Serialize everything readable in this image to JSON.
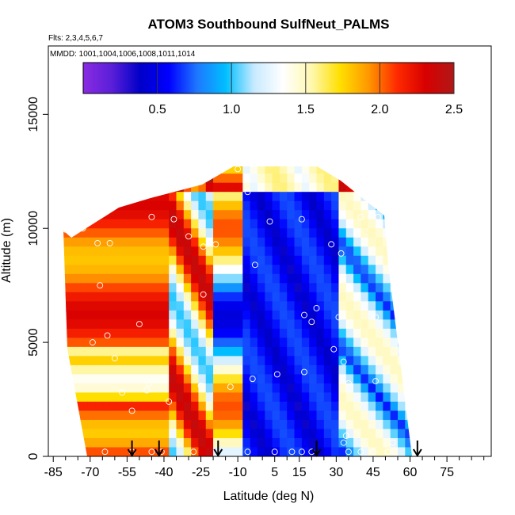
{
  "chart_data": {
    "type": "heatmap",
    "title": "ATOM3 Southbound SulfNeut_PALMS",
    "subtitle_flights": "Flts: 2,3,4,5,6,7",
    "subtitle_dates": "MMDD: 1001,1004,1006,1008,1011,1014",
    "xlabel": "Latitude (deg N)",
    "ylabel": "Altitude (m)",
    "xlim": [
      -87,
      93
    ],
    "ylim": [
      0,
      18000
    ],
    "x_ticks": [
      -85,
      -70,
      -55,
      -40,
      -25,
      -10,
      5,
      15,
      30,
      45,
      60,
      75
    ],
    "x_tick_labels": [
      "-85",
      "-70",
      "-55",
      "-40",
      "-25",
      "-10",
      "5",
      "15",
      "30",
      "45",
      "60",
      "75"
    ],
    "y_ticks": [
      0,
      5000,
      10000,
      15000
    ],
    "y_tick_labels": [
      "0",
      "5000",
      "10000",
      "15000"
    ],
    "colorbar": {
      "range": [
        0,
        2.5
      ],
      "ticks": [
        0.5,
        1.0,
        1.5,
        2.0,
        2.5
      ],
      "tick_labels": [
        "0.5",
        "1.0",
        "1.5",
        "2.0",
        "2.5"
      ],
      "colors": [
        "#8a2be2",
        "#5a1fd8",
        "#0000c8",
        "#0000ff",
        "#1e78ff",
        "#00bfff",
        "#c8eaff",
        "#ffffff",
        "#fff8b0",
        "#ffe000",
        "#ff9800",
        "#ff2a00",
        "#d80000",
        "#b01818"
      ]
    },
    "profile_arrows_lat": [
      -53,
      -42,
      -18,
      22,
      63
    ],
    "grid": false,
    "legend": "none"
  }
}
